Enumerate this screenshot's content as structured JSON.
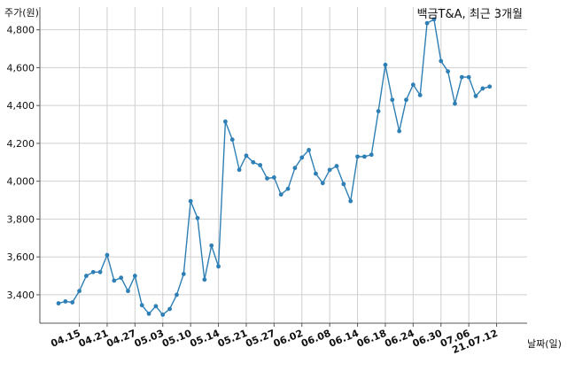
{
  "chart_data": {
    "type": "line",
    "title": "백금T&A, 최근 3개월",
    "ylabel": "주가(원)",
    "xlabel": "날짜(일)",
    "ylim": [
      3250,
      4920
    ],
    "yticks": [
      3400,
      3600,
      3800,
      4000,
      4200,
      4400,
      4600,
      4800
    ],
    "ytick_labels": [
      "3,400",
      "3,600",
      "3,800",
      "4,000",
      "4,200",
      "4,400",
      "4,600",
      "4,800"
    ],
    "xticks": [
      {
        "index": 3,
        "label": "04.15"
      },
      {
        "index": 7,
        "label": "04.21"
      },
      {
        "index": 11,
        "label": "04.27"
      },
      {
        "index": 15,
        "label": "05.03"
      },
      {
        "index": 19,
        "label": "05.10"
      },
      {
        "index": 23,
        "label": "05.14"
      },
      {
        "index": 27,
        "label": "05.21"
      },
      {
        "index": 31,
        "label": "05.27"
      },
      {
        "index": 35,
        "label": "06.02"
      },
      {
        "index": 39,
        "label": "06.08"
      },
      {
        "index": 43,
        "label": "06.14"
      },
      {
        "index": 47,
        "label": "06.18"
      },
      {
        "index": 51,
        "label": "06.24"
      },
      {
        "index": 55,
        "label": "06.30"
      },
      {
        "index": 59,
        "label": "07.06"
      },
      {
        "index": 63,
        "label": "21.07.12"
      }
    ],
    "grid": true,
    "series": [
      {
        "color": "#2e7fb5",
        "values": [
          3355,
          3365,
          3360,
          3420,
          3500,
          3520,
          3520,
          3610,
          3475,
          3490,
          3420,
          3500,
          3345,
          3300,
          3340,
          3295,
          3325,
          3400,
          3510,
          3895,
          3805,
          3480,
          3660,
          3550,
          4315,
          4220,
          4060,
          4135,
          4100,
          4085,
          4015,
          4020,
          3930,
          3960,
          4070,
          4125,
          4165,
          4040,
          3990,
          4060,
          4080,
          3985,
          3895,
          4130,
          4130,
          4140,
          4370,
          4615,
          4430,
          4265,
          4430,
          4510,
          4455,
          4835,
          4855,
          4635,
          4580,
          4410,
          4550,
          4550,
          4450,
          4490,
          4500
        ]
      }
    ]
  }
}
